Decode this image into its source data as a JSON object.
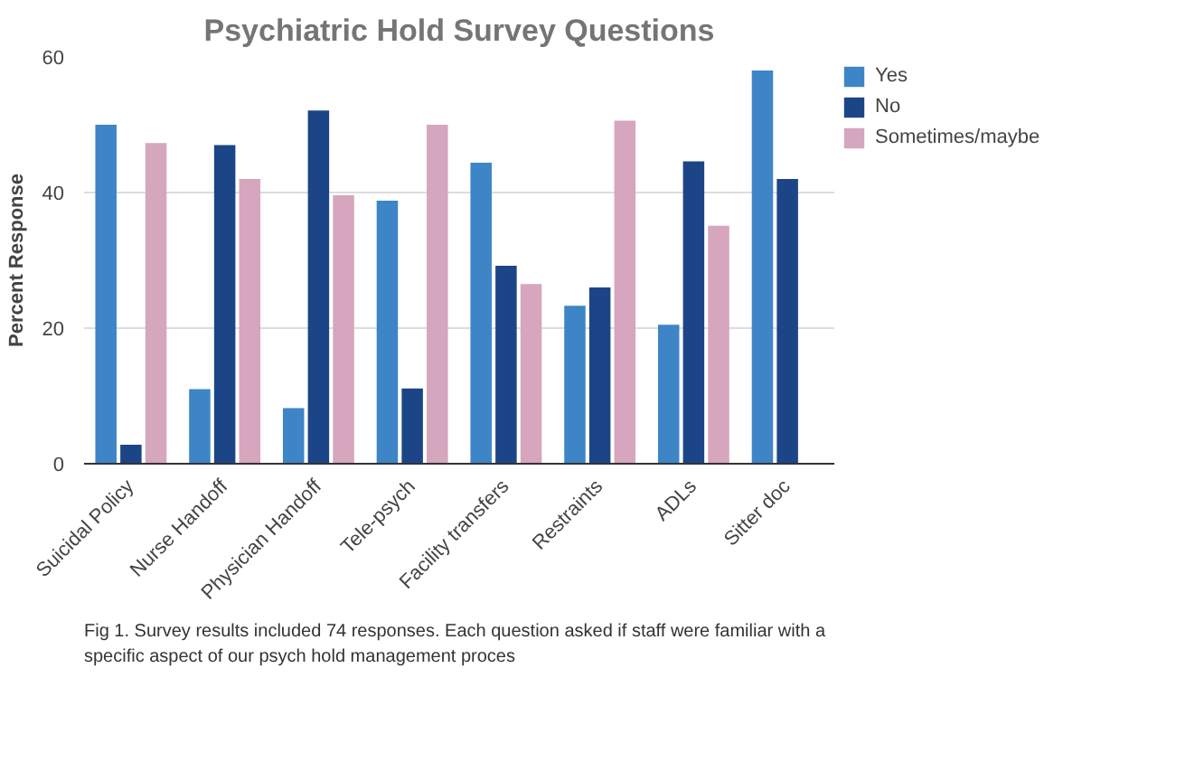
{
  "chart_data": {
    "type": "bar",
    "title": "Psychiatric Hold Survey Questions",
    "ylabel": "Percent Response",
    "categories": [
      "Suicidal Policy",
      "Nurse Handoff",
      "Physician Handoff",
      "Tele-psych",
      "Facility transfers",
      "Restraints",
      "ADLs",
      "Sitter doc"
    ],
    "series": [
      {
        "name": "Yes",
        "color": "#3d85c6",
        "values": [
          50,
          11,
          8.2,
          38.8,
          44.4,
          23.3,
          20.5,
          58
        ]
      },
      {
        "name": "No",
        "color": "#1c4587",
        "values": [
          2.8,
          47,
          52.1,
          11.1,
          29.2,
          26,
          44.6,
          42
        ]
      },
      {
        "name": "Sometimes/maybe",
        "color": "#d5a6bd",
        "values": [
          47.3,
          42,
          39.6,
          50,
          26.5,
          50.6,
          35.1,
          0
        ]
      }
    ],
    "ylim": [
      0,
      60
    ],
    "yticks": [
      0,
      20,
      40,
      60
    ],
    "grid": "y",
    "legend": "right",
    "annotations": [
      "Fig 1. Survey results included 74 responses. Each question asked if staff were familiar with a specific aspect of our psych hold management proces"
    ]
  }
}
